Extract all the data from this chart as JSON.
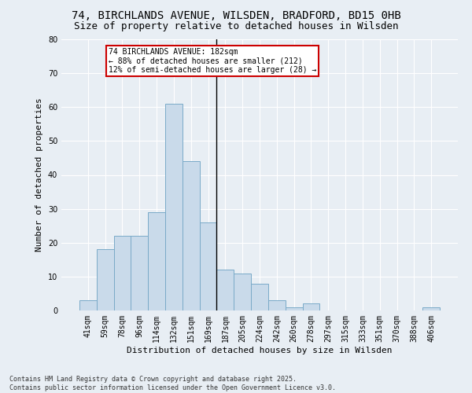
{
  "title1": "74, BIRCHLANDS AVENUE, WILSDEN, BRADFORD, BD15 0HB",
  "title2": "Size of property relative to detached houses in Wilsden",
  "xlabel": "Distribution of detached houses by size in Wilsden",
  "ylabel": "Number of detached properties",
  "categories": [
    "41sqm",
    "59sqm",
    "78sqm",
    "96sqm",
    "114sqm",
    "132sqm",
    "151sqm",
    "169sqm",
    "187sqm",
    "205sqm",
    "224sqm",
    "242sqm",
    "260sqm",
    "278sqm",
    "297sqm",
    "315sqm",
    "333sqm",
    "351sqm",
    "370sqm",
    "388sqm",
    "406sqm"
  ],
  "bar_values": [
    3,
    18,
    22,
    22,
    29,
    61,
    44,
    26,
    12,
    11,
    8,
    3,
    1,
    2,
    0,
    0,
    0,
    0,
    0,
    0,
    1
  ],
  "bar_color": "#c9daea",
  "bar_edge_color": "#7aaac8",
  "vline_index": 8,
  "annotation_line1": "74 BIRCHLANDS AVENUE: 182sqm",
  "annotation_line2": "← 88% of detached houses are smaller (212)",
  "annotation_line3": "12% of semi-detached houses are larger (28) →",
  "annotation_box_facecolor": "#ffffff",
  "annotation_box_edgecolor": "#cc0000",
  "ylim": [
    0,
    80
  ],
  "yticks": [
    0,
    10,
    20,
    30,
    40,
    50,
    60,
    70,
    80
  ],
  "bg_color": "#e8eef4",
  "plot_bg_color": "#e8eef4",
  "grid_color": "#ffffff",
  "footer": "Contains HM Land Registry data © Crown copyright and database right 2025.\nContains public sector information licensed under the Open Government Licence v3.0.",
  "title_fontsize": 10,
  "subtitle_fontsize": 9,
  "axis_label_fontsize": 8,
  "tick_fontsize": 7,
  "footer_fontsize": 6
}
